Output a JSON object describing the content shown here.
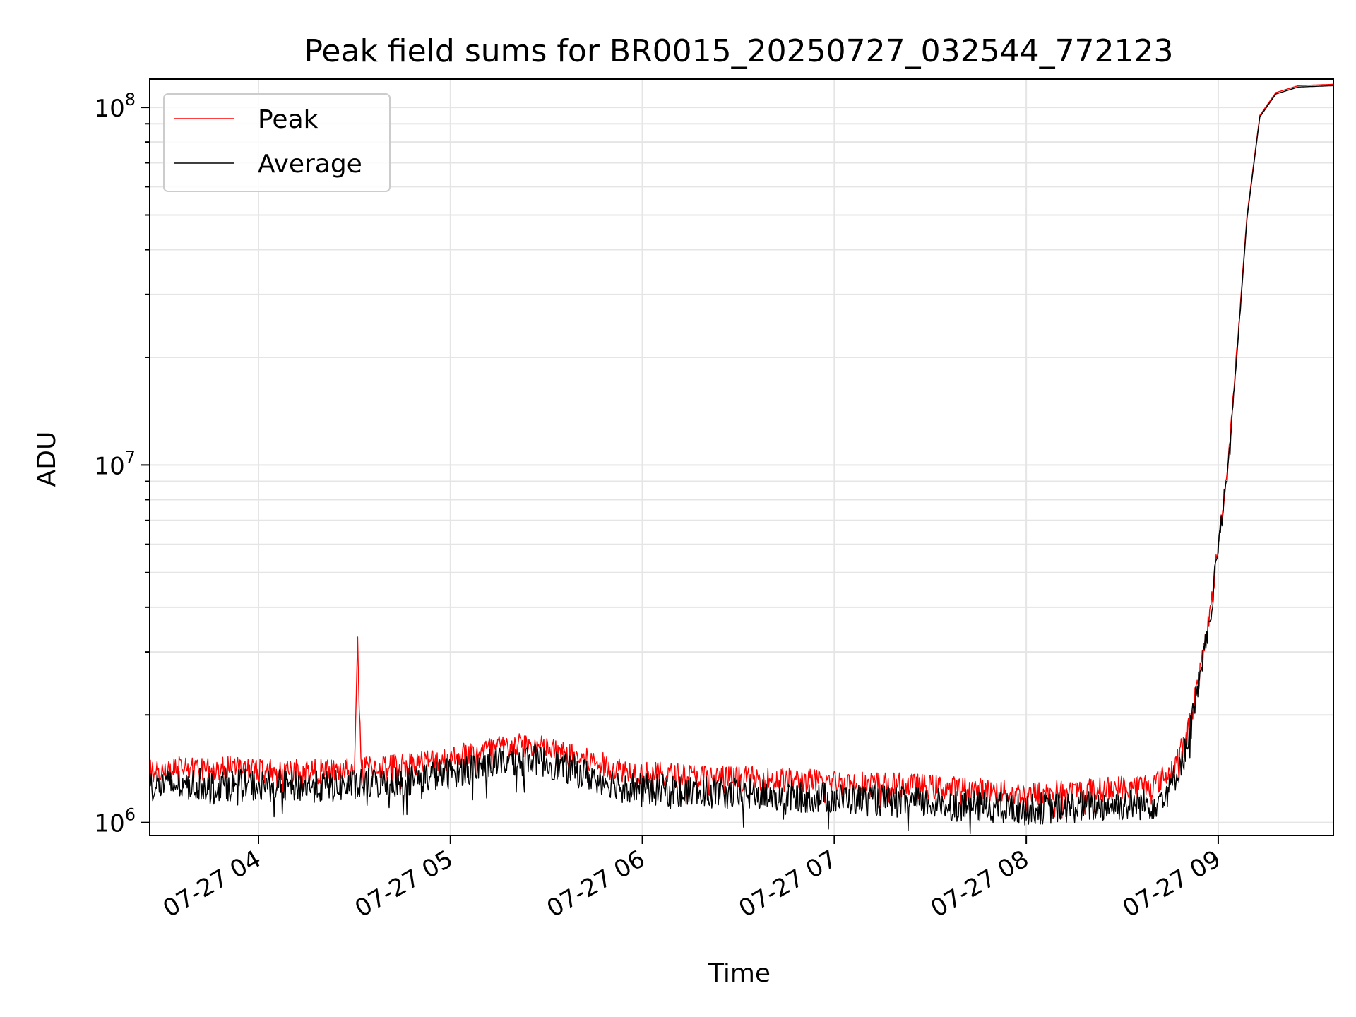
{
  "chart_data": {
    "type": "line",
    "title": "Peak field sums for BR0015_20250727_032544_772123",
    "xlabel": "Time",
    "ylabel": "ADU",
    "yscale": "log",
    "xlim": [
      "2025-07-27T03:26",
      "2025-07-27T09:36"
    ],
    "ylim": [
      920000,
      120000000
    ],
    "grid": true,
    "legend_position": "top-left",
    "x_ticks": [
      {
        "t": "2025-07-27T04:00",
        "label": "07-27 04"
      },
      {
        "t": "2025-07-27T05:00",
        "label": "07-27 05"
      },
      {
        "t": "2025-07-27T06:00",
        "label": "07-27 06"
      },
      {
        "t": "2025-07-27T07:00",
        "label": "07-27 07"
      },
      {
        "t": "2025-07-27T08:00",
        "label": "07-27 08"
      },
      {
        "t": "2025-07-27T09:00",
        "label": "07-27 09"
      }
    ],
    "y_ticks": [
      {
        "value": 1000000,
        "base": "10",
        "exp": "6"
      },
      {
        "value": 10000000,
        "base": "10",
        "exp": "7"
      },
      {
        "value": 100000000,
        "base": "10",
        "exp": "8"
      }
    ],
    "series": [
      {
        "name": "Peak",
        "color": "#ff0000",
        "points": [
          [
            "2025-07-27T03:26",
            1400000
          ],
          [
            "2025-07-27T03:40",
            1420000
          ],
          [
            "2025-07-27T04:00",
            1400000
          ],
          [
            "2025-07-27T04:20",
            1390000
          ],
          [
            "2025-07-27T04:30",
            1400000
          ],
          [
            "2025-07-27T04:31",
            3300000
          ],
          [
            "2025-07-27T04:32",
            1420000
          ],
          [
            "2025-07-27T04:45",
            1450000
          ],
          [
            "2025-07-27T05:00",
            1520000
          ],
          [
            "2025-07-27T05:15",
            1620000
          ],
          [
            "2025-07-27T05:25",
            1650000
          ],
          [
            "2025-07-27T05:35",
            1560000
          ],
          [
            "2025-07-27T05:50",
            1430000
          ],
          [
            "2025-07-27T06:00",
            1370000
          ],
          [
            "2025-07-27T06:30",
            1330000
          ],
          [
            "2025-07-27T07:00",
            1300000
          ],
          [
            "2025-07-27T07:30",
            1260000
          ],
          [
            "2025-07-27T08:00",
            1200000
          ],
          [
            "2025-07-27T08:20",
            1230000
          ],
          [
            "2025-07-27T08:40",
            1280000
          ],
          [
            "2025-07-27T08:45",
            1380000
          ],
          [
            "2025-07-27T08:50",
            1700000
          ],
          [
            "2025-07-27T08:55",
            2800000
          ],
          [
            "2025-07-27T08:58",
            4200000
          ],
          [
            "2025-07-27T09:00",
            6000000
          ],
          [
            "2025-07-27T09:03",
            10000000
          ],
          [
            "2025-07-27T09:06",
            22000000
          ],
          [
            "2025-07-27T09:09",
            50000000
          ],
          [
            "2025-07-27T09:13",
            95000000
          ],
          [
            "2025-07-27T09:18",
            110000000
          ],
          [
            "2025-07-27T09:25",
            115000000
          ],
          [
            "2025-07-27T09:36",
            116000000
          ]
        ]
      },
      {
        "name": "Average",
        "color": "#000000",
        "points": [
          [
            "2025-07-27T03:26",
            1270000
          ],
          [
            "2025-07-27T03:40",
            1280000
          ],
          [
            "2025-07-27T04:00",
            1270000
          ],
          [
            "2025-07-27T04:20",
            1260000
          ],
          [
            "2025-07-27T04:30",
            1270000
          ],
          [
            "2025-07-27T04:45",
            1310000
          ],
          [
            "2025-07-27T05:00",
            1380000
          ],
          [
            "2025-07-27T05:15",
            1480000
          ],
          [
            "2025-07-27T05:25",
            1520000
          ],
          [
            "2025-07-27T05:35",
            1430000
          ],
          [
            "2025-07-27T05:50",
            1300000
          ],
          [
            "2025-07-27T06:00",
            1240000
          ],
          [
            "2025-07-27T06:30",
            1200000
          ],
          [
            "2025-07-27T07:00",
            1170000
          ],
          [
            "2025-07-27T07:30",
            1130000
          ],
          [
            "2025-07-27T08:00",
            1090000
          ],
          [
            "2025-07-27T08:20",
            1110000
          ],
          [
            "2025-07-27T08:40",
            1130000
          ],
          [
            "2025-07-27T08:45",
            1250000
          ],
          [
            "2025-07-27T08:50",
            1600000
          ],
          [
            "2025-07-27T08:55",
            2700000
          ],
          [
            "2025-07-27T08:58",
            4100000
          ],
          [
            "2025-07-27T09:00",
            5900000
          ],
          [
            "2025-07-27T09:03",
            9800000
          ],
          [
            "2025-07-27T09:06",
            21000000
          ],
          [
            "2025-07-27T09:09",
            49000000
          ],
          [
            "2025-07-27T09:13",
            94000000
          ],
          [
            "2025-07-27T09:18",
            109000000
          ],
          [
            "2025-07-27T09:25",
            114000000
          ],
          [
            "2025-07-27T09:36",
            115000000
          ]
        ]
      }
    ]
  }
}
